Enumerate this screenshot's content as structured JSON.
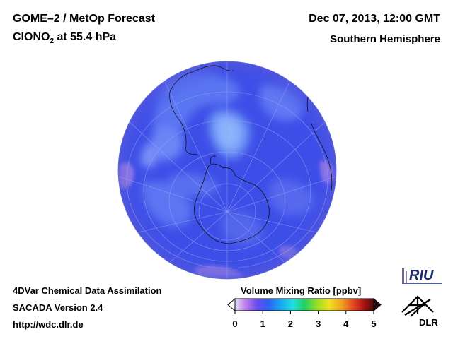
{
  "header": {
    "product": "GOME–2 / MetOp Forecast",
    "species_main": "ClONO",
    "species_sub": "2",
    "species_rest": " at 55.4 hPa",
    "date": "Dec 07, 2013, 12:00 GMT",
    "region": "Southern Hemisphere"
  },
  "footer": {
    "line1": "4DVar Chemical Data Assimilation",
    "line2": "SACADA Version 2.4",
    "line3": "http://wdc.dlr.de"
  },
  "colorbar": {
    "title": "Volume Mixing Ratio [ppbv]",
    "ticks": [
      "0",
      "1",
      "2",
      "3",
      "4",
      "5"
    ],
    "range": [
      0,
      5
    ],
    "colors": [
      "#e0d0f0",
      "#c070e8",
      "#6040f0",
      "#2060f0",
      "#10a0f0",
      "#20e0e0",
      "#20d060",
      "#a0e020",
      "#f0e020",
      "#f0a020",
      "#e04020",
      "#a01010",
      "#501010"
    ]
  },
  "logos": {
    "riu": "RIU",
    "dlr": "DLR"
  },
  "map": {
    "background_color": "#3d4ee8",
    "graticule_color": "#9aa4f0"
  }
}
